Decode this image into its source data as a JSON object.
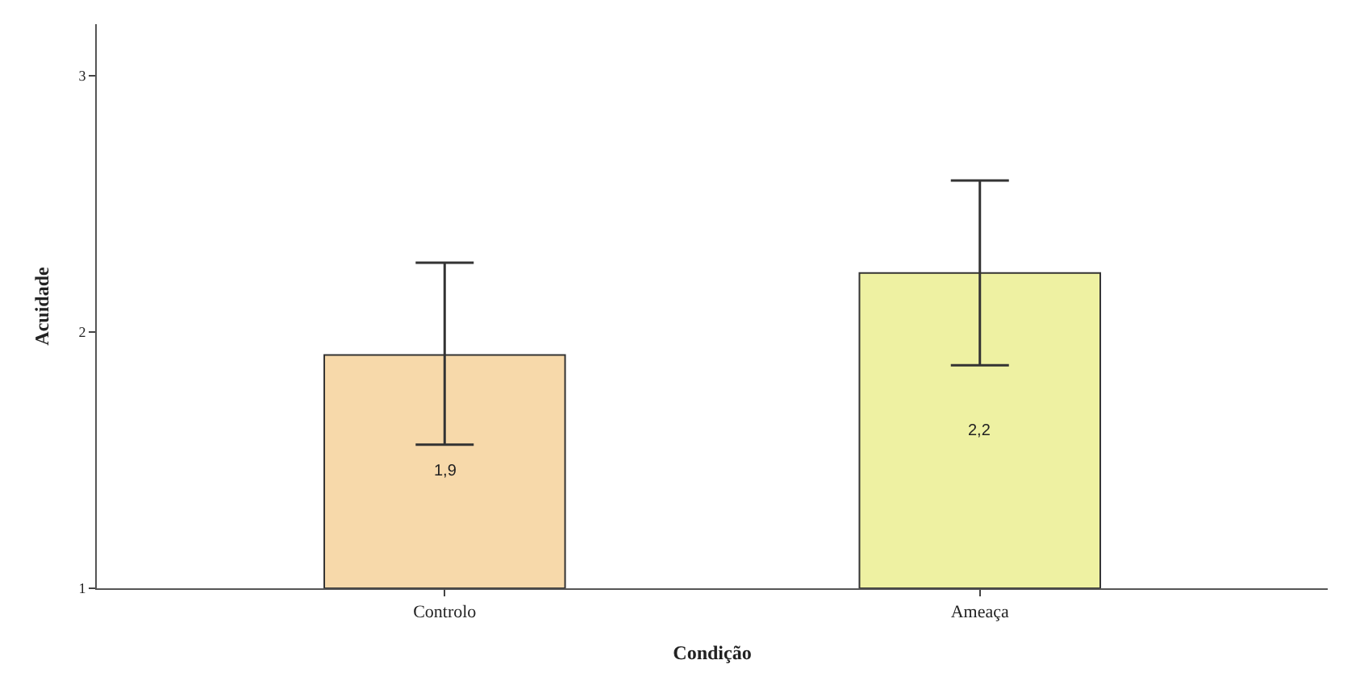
{
  "chart_data": {
    "type": "bar",
    "xlabel": "Condição",
    "ylabel": "Acuidade",
    "categories": [
      "Controlo",
      "Ameaça"
    ],
    "values": [
      1.91,
      2.23
    ],
    "colors": [
      "#f7d9aa",
      "#eef1a2"
    ],
    "errors": [
      [
        1.56,
        2.27
      ],
      [
        1.87,
        2.59
      ]
    ],
    "value_labels": [
      "1,9",
      "2,2"
    ],
    "ylim": [
      1,
      3.2
    ],
    "yticks": [
      1,
      2,
      3
    ],
    "legend": false
  }
}
